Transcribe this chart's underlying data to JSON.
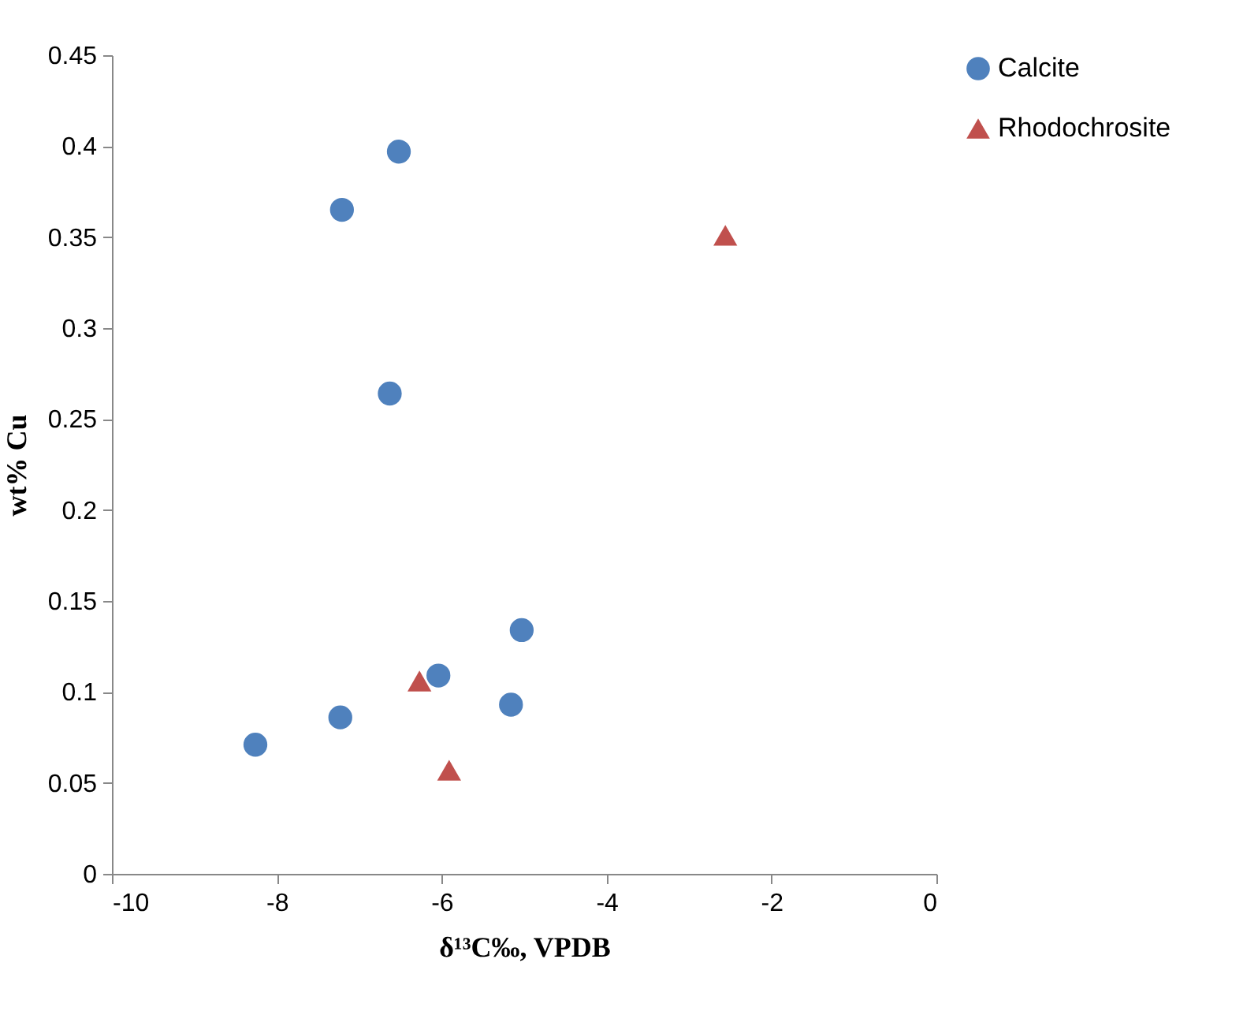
{
  "chart_data": {
    "type": "scatter",
    "xlabel": "δ¹³C‰, VPDB",
    "ylabel": "wt% Cu",
    "xlim": [
      -10,
      0
    ],
    "xticks": [
      -10,
      -8,
      -6,
      -4,
      -2,
      0
    ],
    "ylim": [
      0,
      0.45
    ],
    "yticks": [
      0,
      0.05,
      0.1,
      0.15,
      0.2,
      0.25,
      0.3,
      0.35,
      0.4,
      0.45
    ],
    "grid": false,
    "legend": "right",
    "series": [
      {
        "name": "Calcite",
        "color": "#4f81bd",
        "marker": "circle",
        "x": [
          -6.52,
          -7.21,
          -6.63,
          -5.03,
          -6.04,
          -5.16,
          -7.23,
          -8.26
        ],
        "values": [
          0.397,
          0.365,
          0.264,
          0.134,
          0.109,
          0.093,
          0.086,
          0.071
        ]
      },
      {
        "name": "Rhodochrosite",
        "color": "#c0504d",
        "marker": "triangle",
        "x": [
          -2.56,
          -6.27,
          -5.91
        ],
        "values": [
          0.351,
          0.106,
          0.057
        ]
      }
    ]
  }
}
